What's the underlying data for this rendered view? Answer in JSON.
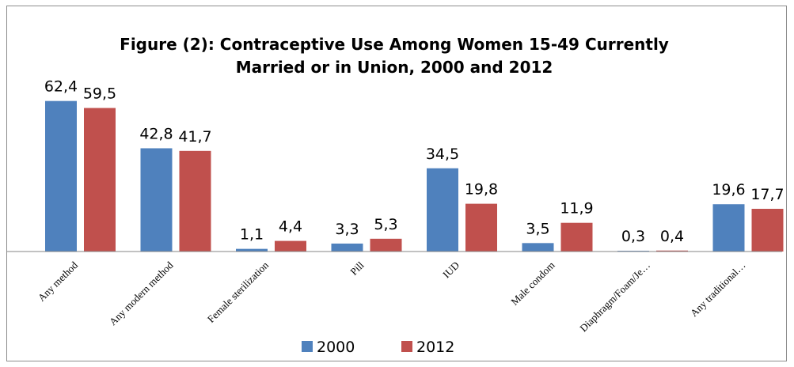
{
  "chart_data": {
    "type": "bar",
    "title_line1": "Figure (2): Contraceptive Use Among Women 15-49 Currently",
    "title_line2": "Married or in Union, 2000 and 2012",
    "categories": [
      "Any method",
      "Any modern method",
      "Female sterilization",
      "Pill",
      "IUD",
      "Male condom",
      "Diaphragm/Foam/Je…",
      "Any traditional…"
    ],
    "series": [
      {
        "name": "2000",
        "color": "#4F81BD",
        "values": [
          62.4,
          42.8,
          1.1,
          3.3,
          34.5,
          3.5,
          0.3,
          19.6
        ],
        "labels": [
          "62,4",
          "42,8",
          "1,1",
          "3,3",
          "34,5",
          "3,5",
          "0,3",
          "19,6"
        ]
      },
      {
        "name": "2012",
        "color": "#C0504D",
        "values": [
          59.5,
          41.7,
          4.4,
          5.3,
          19.8,
          11.9,
          0.4,
          17.7
        ],
        "labels": [
          "59,5",
          "41,7",
          "4,4",
          "5,3",
          "19,8",
          "11,9",
          "0,4",
          "17,7"
        ]
      }
    ],
    "ylim": [
      0,
      70
    ],
    "grid": false,
    "legend_position": "bottom"
  }
}
